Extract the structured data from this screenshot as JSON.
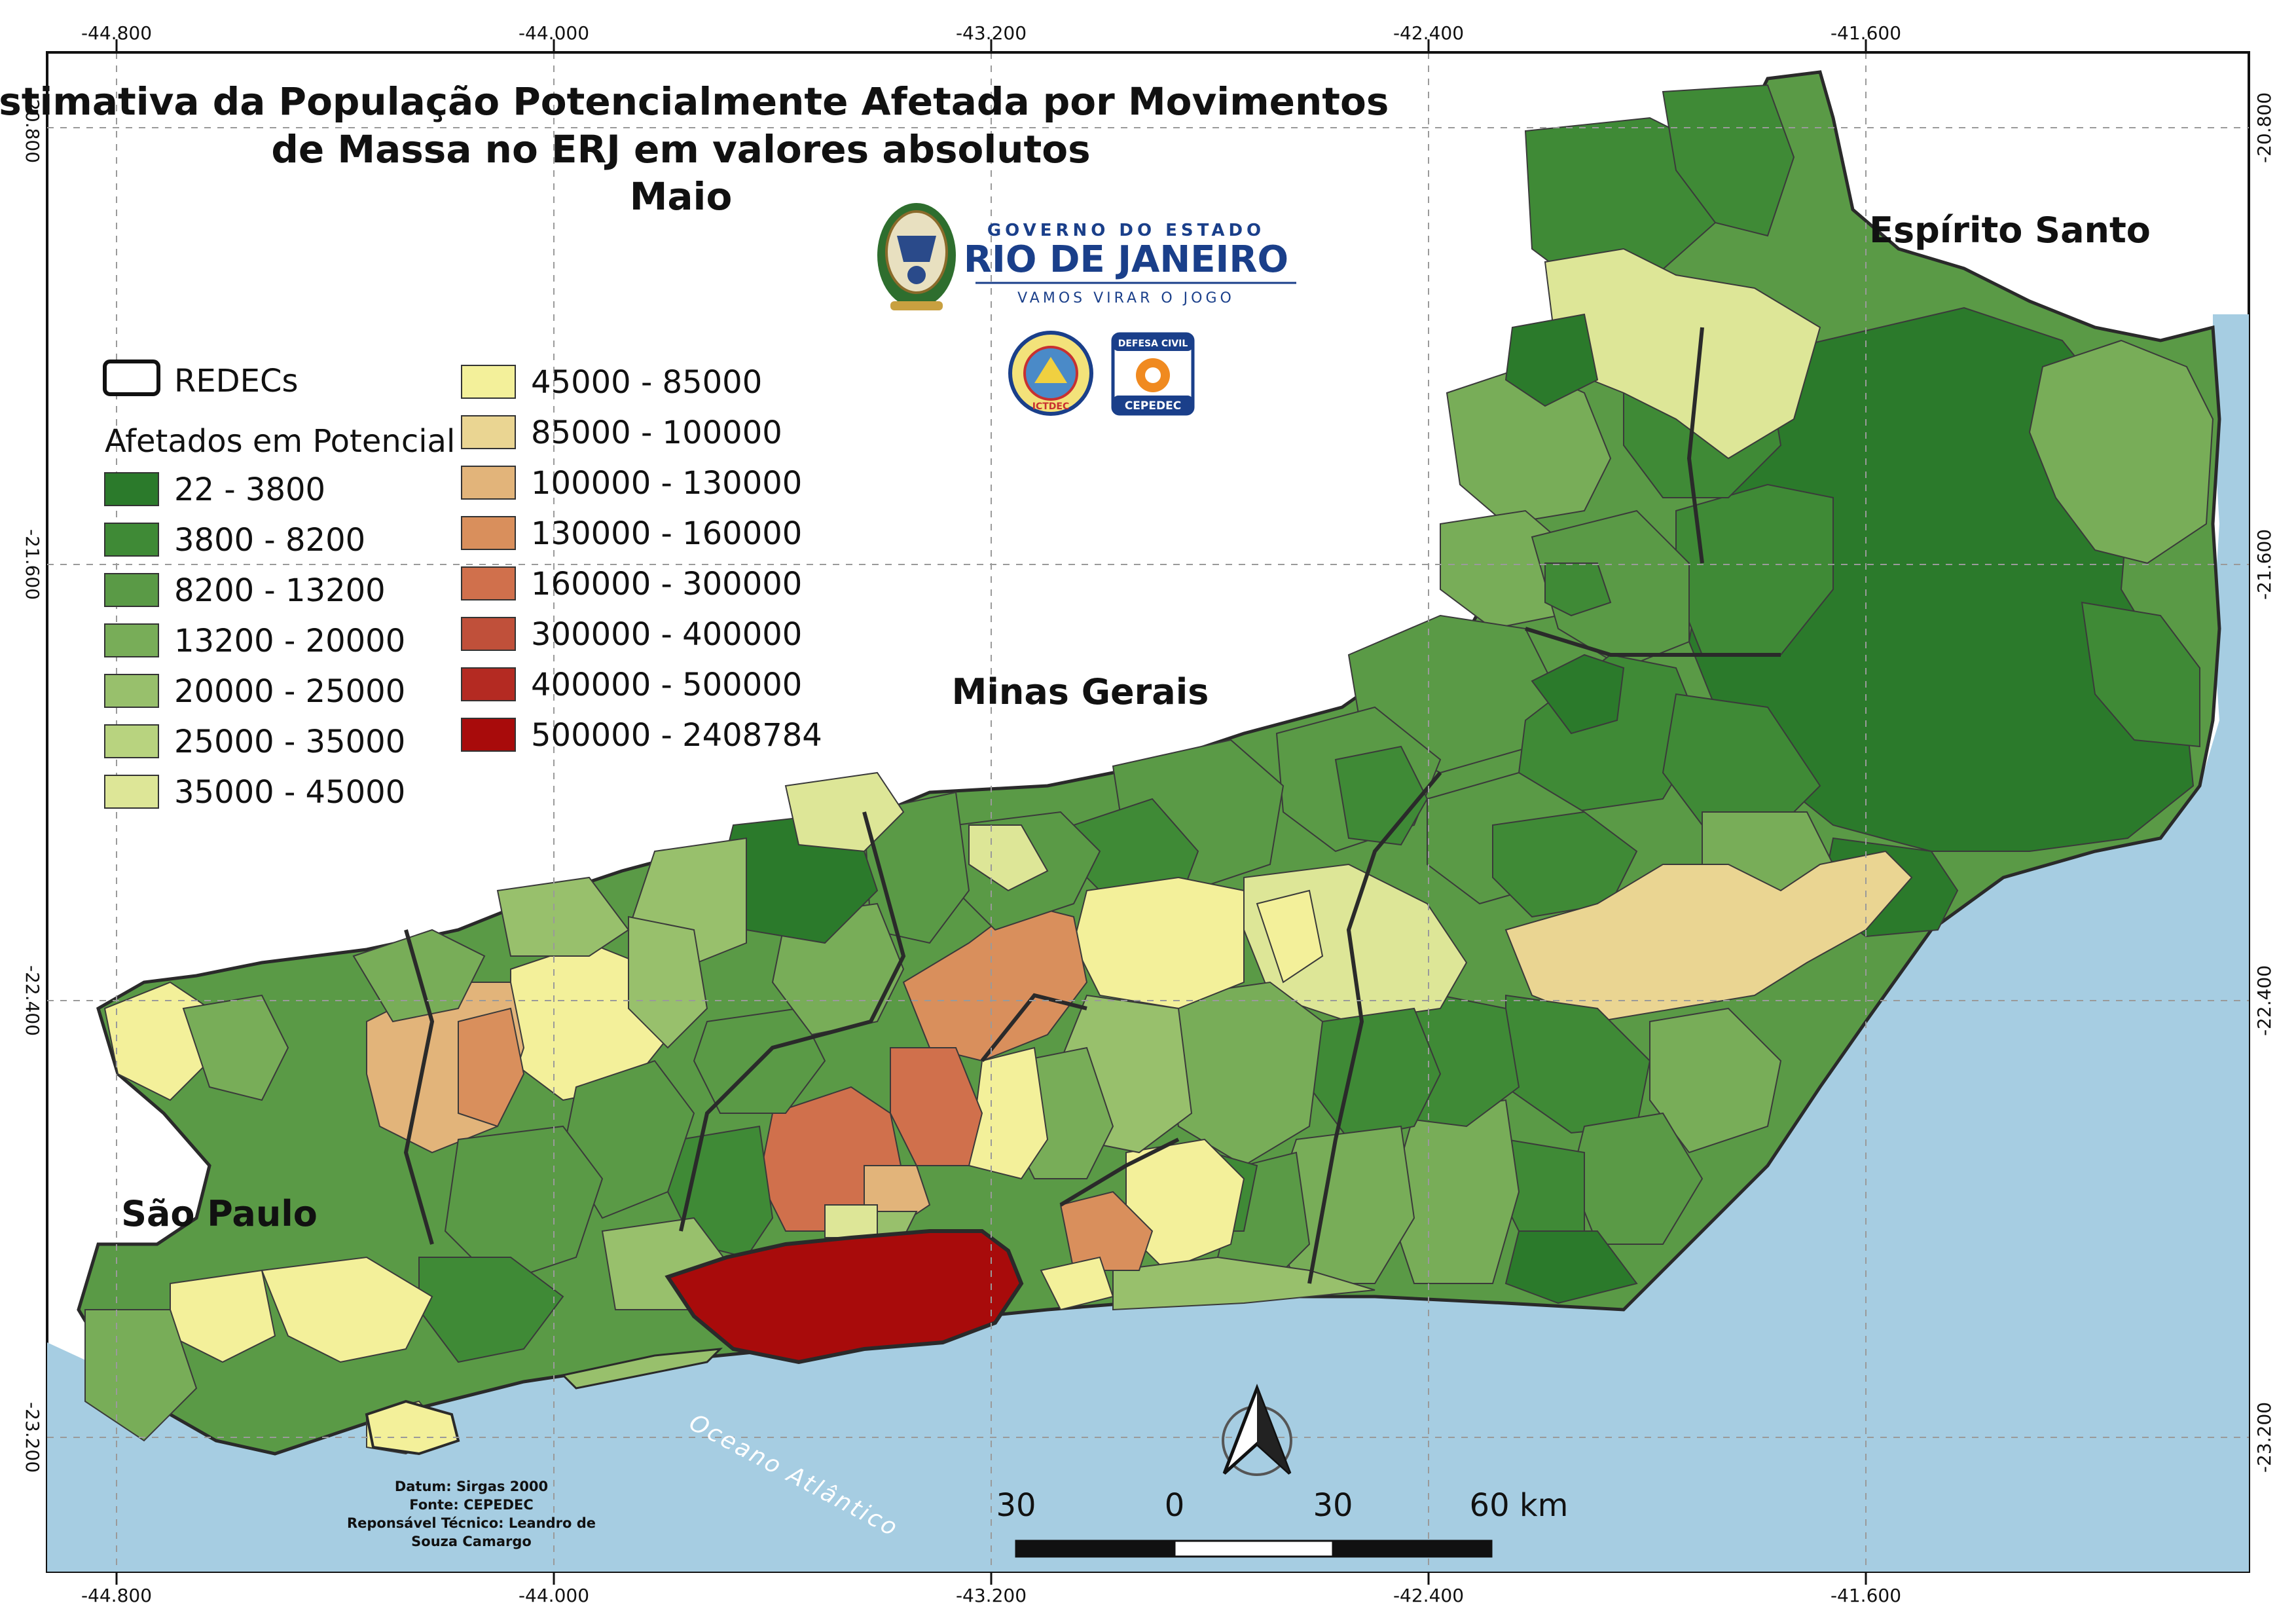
{
  "title": {
    "line1": "Estimativa da População Potencialmente Afetada por Movimentos",
    "line2": "de Massa no ERJ em valores absolutos",
    "line3": "Maio"
  },
  "coordinates": {
    "longitudes": [
      "-44.800",
      "-44.000",
      "-43.200",
      "-42.400",
      "-41.600"
    ],
    "latitudes": [
      "-20.800",
      "-21.600",
      "-22.400",
      "-23.200"
    ]
  },
  "regions": {
    "es": "Espírito Santo",
    "mg": "Minas Gerais",
    "sp": "São Paulo",
    "ocean": "Oceano Atlântico"
  },
  "logo": {
    "top": "GOVERNO DO ESTADO",
    "main": "RIO DE JANEIRO",
    "slogan": "VAMOS VIRAR O JOGO",
    "badge1": "ICTDEC",
    "badge2_top": "DEFESA CIVIL",
    "badge2_bottom": "CEPEDEC"
  },
  "legend": {
    "redecs_label": "REDECs",
    "heading": "Afetados em Potencial",
    "classes": [
      {
        "label": "22 - 3800",
        "color": "#2b7a2b"
      },
      {
        "label": "3800 - 8200",
        "color": "#3f8a36"
      },
      {
        "label": "8200 - 13200",
        "color": "#5a9a46"
      },
      {
        "label": "13200 - 20000",
        "color": "#78ad58"
      },
      {
        "label": "20000 - 25000",
        "color": "#98c06c"
      },
      {
        "label": "25000 - 35000",
        "color": "#b8d37f"
      },
      {
        "label": "35000 - 45000",
        "color": "#dde697"
      },
      {
        "label": "45000 - 85000",
        "color": "#f3f09a"
      },
      {
        "label": "85000 - 100000",
        "color": "#ead592"
      },
      {
        "label": "100000 - 130000",
        "color": "#e2b47a"
      },
      {
        "label": "130000 - 160000",
        "color": "#d98f5c"
      },
      {
        "label": "160000 - 300000",
        "color": "#d0704c"
      },
      {
        "label": "300000 - 400000",
        "color": "#c0503a"
      },
      {
        "label": "400000 - 500000",
        "color": "#b42a22"
      },
      {
        "label": "500000 - 2408784",
        "color": "#a80b0b"
      }
    ]
  },
  "credits": {
    "line1": "Datum: Sirgas 2000",
    "line2": "Fonte: CEPEDEC",
    "line3": "Reponsável Técnico: Leandro de",
    "line4": "Souza Camargo"
  },
  "scale": {
    "labels": [
      "30",
      "0",
      "30",
      "60 km"
    ]
  },
  "colors": {
    "ocean": "#a6cde2",
    "border": "#2a2a2a",
    "grid": "#9a9a9a"
  }
}
